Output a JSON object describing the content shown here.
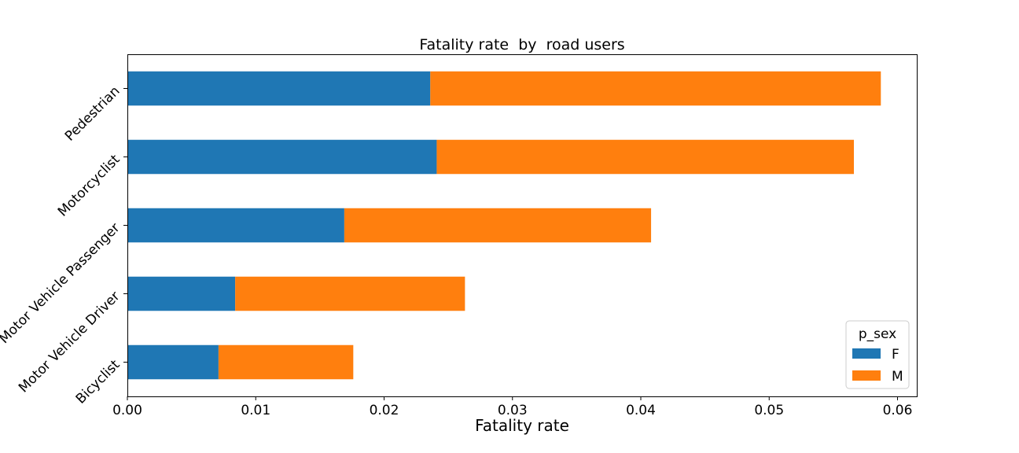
{
  "chart_data": {
    "type": "bar",
    "orientation": "horizontal",
    "stacked": true,
    "title": "Fatality rate  by  road users",
    "xlabel": "Fatality rate",
    "ylabel": "",
    "xlim": [
      0,
      0.0615
    ],
    "xticks": [
      "0.00",
      "0.01",
      "0.02",
      "0.03",
      "0.04",
      "0.05",
      "0.06"
    ],
    "categories": [
      "Bicyclist",
      "Motor Vehicle Driver",
      "Motor Vehicle Passenger",
      "Motorcyclist",
      "Pedestrian"
    ],
    "series": [
      {
        "name": "F",
        "color": "#1f77b4",
        "values": [
          0.0071,
          0.0084,
          0.0169,
          0.0241,
          0.0236
        ]
      },
      {
        "name": "M",
        "color": "#ff7f0e",
        "values": [
          0.0105,
          0.0179,
          0.0239,
          0.0325,
          0.0351
        ]
      }
    ],
    "legend": {
      "title": "p_sex",
      "position": "lower-right"
    },
    "grid": false
  }
}
